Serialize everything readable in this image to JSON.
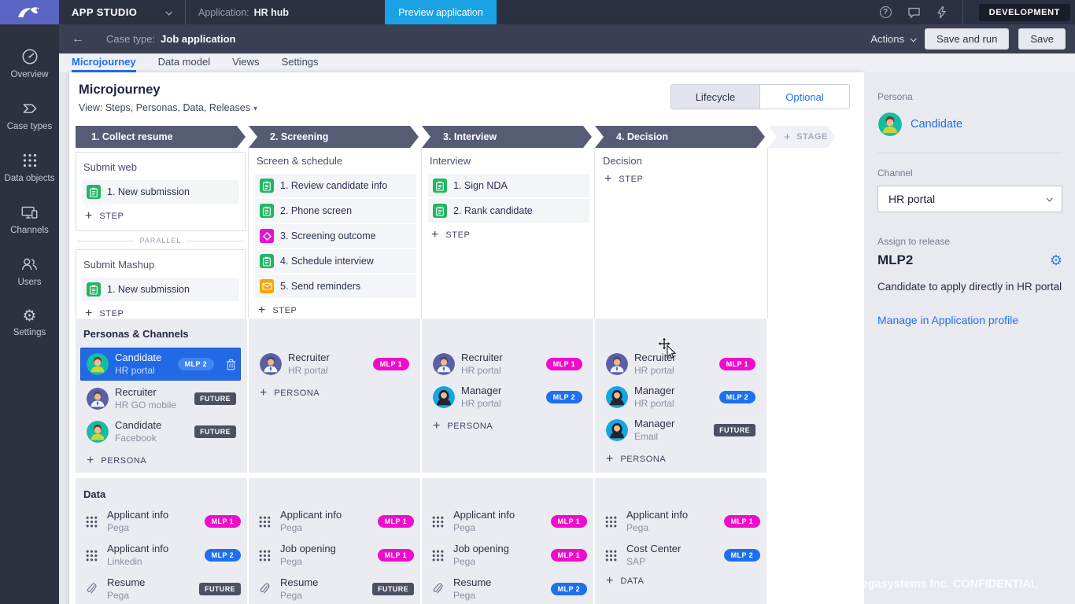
{
  "topbar": {
    "app_name": "APP STUDIO",
    "application_label": "Application:",
    "application_name": "HR hub",
    "preview_button": "Preview application",
    "env_badge": "DEVELOPMENT",
    "help_symbol": "?"
  },
  "toolbar": {
    "back_symbol": "←",
    "case_type_label": "Case type:",
    "case_type_name": "Job application",
    "actions_label": "Actions",
    "save_and_run_label": "Save and run",
    "save_label": "Save"
  },
  "sidebar": {
    "items": [
      {
        "label": "Overview",
        "icon": "gauge"
      },
      {
        "label": "Case types",
        "icon": "flag"
      },
      {
        "label": "Data objects",
        "icon": "dots"
      },
      {
        "label": "Channels",
        "icon": "devices"
      },
      {
        "label": "Users",
        "icon": "users"
      },
      {
        "label": "Settings",
        "icon": "gear"
      }
    ]
  },
  "tabs": {
    "items": [
      {
        "label": "Microjourney",
        "active": true
      },
      {
        "label": "Data model",
        "active": false
      },
      {
        "label": "Views",
        "active": false
      },
      {
        "label": "Settings",
        "active": false
      }
    ]
  },
  "page": {
    "title": "Microjourney",
    "view_selector": "View: Steps, Personas, Data, Releases",
    "lifecycle_label": "Lifecycle",
    "optional_label": "Optional",
    "add_stage_label": "STAGE",
    "add_step_label": "STEP",
    "add_persona_label": "PERSONA",
    "add_data_label": "DATA",
    "parallel_label": "PARALLEL",
    "personas_header": "Personas & Channels",
    "data_header": "Data"
  },
  "stages": [
    {
      "name": "1. Collect resume",
      "boxed": true,
      "processes": [
        {
          "name": "Submit web",
          "steps": [
            {
              "label": "1. New submission",
              "icon": "task"
            }
          ]
        },
        {
          "name": "Submit Mashup",
          "steps": [
            {
              "label": "1. New submission",
              "icon": "task"
            }
          ]
        }
      ],
      "personas": [
        {
          "name": "Candidate",
          "channel": "HR portal",
          "badge": "MLP 2",
          "badge_type": "mlp2-light",
          "avatar": "candidate",
          "selected": true,
          "deletable": true
        },
        {
          "name": "Recruiter",
          "channel": "HR GO mobile",
          "badge": "FUTURE",
          "badge_type": "future",
          "avatar": "recruiter",
          "selected": false
        },
        {
          "name": "Candidate",
          "channel": "Facebook",
          "badge": "FUTURE",
          "badge_type": "future",
          "avatar": "candidate",
          "selected": false
        }
      ],
      "data": [
        {
          "name": "Applicant info",
          "source": "Pega",
          "badge": "MLP 1",
          "badge_type": "mlp1",
          "icon": "dots"
        },
        {
          "name": "Applicant info",
          "source": "Linkedin",
          "badge": "MLP 2",
          "badge_type": "mlp2",
          "icon": "dots"
        },
        {
          "name": "Resume",
          "source": "Pega",
          "badge": "FUTURE",
          "badge_type": "future",
          "icon": "clip"
        }
      ],
      "show_add_data": false
    },
    {
      "name": "2. Screening",
      "boxed": false,
      "processes": [
        {
          "name": "Screen & schedule",
          "steps": [
            {
              "label": "1. Review candidate info",
              "icon": "task"
            },
            {
              "label": "2. Phone screen",
              "icon": "task"
            },
            {
              "label": "3. Screening outcome",
              "icon": "decision"
            },
            {
              "label": "4. Schedule interview",
              "icon": "task"
            },
            {
              "label": "5. Send reminders",
              "icon": "email"
            }
          ]
        }
      ],
      "personas": [
        {
          "name": "Recruiter",
          "channel": "HR portal",
          "badge": "MLP 1",
          "badge_type": "mlp1",
          "avatar": "recruiter",
          "selected": false
        }
      ],
      "data": [
        {
          "name": "Applicant info",
          "source": "Pega",
          "badge": "MLP 1",
          "badge_type": "mlp1",
          "icon": "dots"
        },
        {
          "name": "Job opening",
          "source": "Pega",
          "badge": "MLP 1",
          "badge_type": "mlp1",
          "icon": "dots"
        },
        {
          "name": "Resume",
          "source": "Pega",
          "badge": "FUTURE",
          "badge_type": "future",
          "icon": "clip"
        }
      ],
      "show_add_data": false
    },
    {
      "name": "3. Interview",
      "boxed": false,
      "processes": [
        {
          "name": "Interview",
          "steps": [
            {
              "label": "1. Sign NDA",
              "icon": "task"
            },
            {
              "label": "2. Rank candidate",
              "icon": "task"
            }
          ]
        }
      ],
      "personas": [
        {
          "name": "Recruiter",
          "channel": "HR portal",
          "badge": "MLP 1",
          "badge_type": "mlp1",
          "avatar": "recruiter",
          "selected": false
        },
        {
          "name": "Manager",
          "channel": "HR portal",
          "badge": "MLP 2",
          "badge_type": "mlp2",
          "avatar": "manager",
          "selected": false
        }
      ],
      "data": [
        {
          "name": "Applicant info",
          "source": "Pega",
          "badge": "MLP 1",
          "badge_type": "mlp1",
          "icon": "dots"
        },
        {
          "name": "Job opening",
          "source": "Pega",
          "badge": "MLP 1",
          "badge_type": "mlp1",
          "icon": "dots"
        },
        {
          "name": "Resume",
          "source": "Pega",
          "badge": "MLP 2",
          "badge_type": "mlp2",
          "icon": "clip"
        }
      ],
      "show_add_data": false
    },
    {
      "name": "4. Decision",
      "boxed": false,
      "processes": [
        {
          "name": "Decision",
          "steps": []
        }
      ],
      "personas": [
        {
          "name": "Recruiter",
          "channel": "HR portal",
          "badge": "MLP 1",
          "badge_type": "mlp1",
          "avatar": "recruiter",
          "selected": false
        },
        {
          "name": "Manager",
          "channel": "HR portal",
          "badge": "MLP 2",
          "badge_type": "mlp2",
          "avatar": "manager",
          "selected": false
        },
        {
          "name": "Manager",
          "channel": "Email",
          "badge": "FUTURE",
          "badge_type": "future",
          "avatar": "manager",
          "selected": false
        }
      ],
      "data": [
        {
          "name": "Applicant info",
          "source": "Pega",
          "badge": "MLP 1",
          "badge_type": "mlp1",
          "icon": "dots"
        },
        {
          "name": "Cost Center",
          "source": "SAP",
          "badge": "MLP 2",
          "badge_type": "mlp2",
          "icon": "dots"
        }
      ],
      "show_add_data": true
    }
  ],
  "right_panel": {
    "persona_label": "Persona",
    "persona_name": "Candidate",
    "channel_label": "Channel",
    "channel_value": "HR portal",
    "release_label": "Assign to release",
    "release_value": "MLP2",
    "release_description": "Candidate to apply directly in HR portal",
    "manage_link": "Manage in Application profile"
  },
  "watermark": "Pegasystems Inc. CONFIDENTIAL"
}
